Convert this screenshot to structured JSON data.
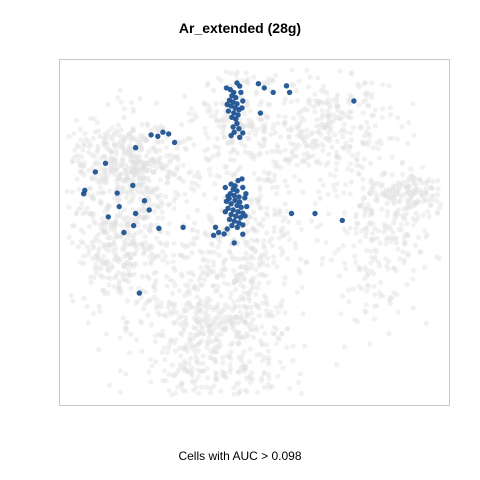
{
  "chart_data": {
    "type": "scatter",
    "title": "Ar_extended (28g)",
    "caption": "Cells with AUC > 0.098",
    "xlabel": "",
    "ylabel": "",
    "grid": false,
    "legend": "none",
    "background_color": "#e0e0e0",
    "highlight_color": "#1d5392",
    "highlighted_cells": [
      [
        0.438,
        0.913
      ],
      [
        0.447,
        0.905
      ],
      [
        0.442,
        0.895
      ],
      [
        0.452,
        0.89
      ],
      [
        0.436,
        0.882
      ],
      [
        0.445,
        0.877
      ],
      [
        0.455,
        0.872
      ],
      [
        0.44,
        0.866
      ],
      [
        0.45,
        0.86
      ],
      [
        0.46,
        0.855
      ],
      [
        0.433,
        0.851
      ],
      [
        0.447,
        0.846
      ],
      [
        0.458,
        0.84
      ],
      [
        0.442,
        0.833
      ],
      [
        0.452,
        0.828
      ],
      [
        0.462,
        0.923
      ],
      [
        0.428,
        0.918
      ],
      [
        0.465,
        0.905
      ],
      [
        0.47,
        0.88
      ],
      [
        0.43,
        0.87
      ],
      [
        0.468,
        0.86
      ],
      [
        0.455,
        0.815
      ],
      [
        0.445,
        0.805
      ],
      [
        0.46,
        0.8
      ],
      [
        0.448,
        0.79
      ],
      [
        0.47,
        0.788
      ],
      [
        0.462,
        0.775
      ],
      [
        0.44,
        0.78
      ],
      [
        0.51,
        0.93
      ],
      [
        0.525,
        0.918
      ],
      [
        0.548,
        0.905
      ],
      [
        0.582,
        0.924
      ],
      [
        0.59,
        0.905
      ],
      [
        0.755,
        0.88
      ],
      [
        0.515,
        0.845
      ],
      [
        0.455,
        0.932
      ],
      [
        0.44,
        0.64
      ],
      [
        0.45,
        0.635
      ],
      [
        0.445,
        0.625
      ],
      [
        0.455,
        0.62
      ],
      [
        0.438,
        0.612
      ],
      [
        0.448,
        0.607
      ],
      [
        0.46,
        0.603
      ],
      [
        0.435,
        0.598
      ],
      [
        0.45,
        0.593
      ],
      [
        0.462,
        0.588
      ],
      [
        0.44,
        0.583
      ],
      [
        0.455,
        0.578
      ],
      [
        0.466,
        0.573
      ],
      [
        0.432,
        0.57
      ],
      [
        0.445,
        0.565
      ],
      [
        0.458,
        0.56
      ],
      [
        0.47,
        0.556
      ],
      [
        0.44,
        0.552
      ],
      [
        0.452,
        0.547
      ],
      [
        0.464,
        0.543
      ],
      [
        0.436,
        0.538
      ],
      [
        0.448,
        0.533
      ],
      [
        0.46,
        0.528
      ],
      [
        0.425,
        0.63
      ],
      [
        0.47,
        0.63
      ],
      [
        0.475,
        0.6
      ],
      [
        0.428,
        0.59
      ],
      [
        0.48,
        0.575
      ],
      [
        0.425,
        0.56
      ],
      [
        0.476,
        0.548
      ],
      [
        0.442,
        0.52
      ],
      [
        0.456,
        0.515
      ],
      [
        0.4,
        0.515
      ],
      [
        0.408,
        0.5
      ],
      [
        0.395,
        0.492
      ],
      [
        0.422,
        0.496
      ],
      [
        0.43,
        0.51
      ],
      [
        0.47,
        0.522
      ],
      [
        0.47,
        0.495
      ],
      [
        0.448,
        0.47
      ],
      [
        0.235,
        0.782
      ],
      [
        0.265,
        0.79
      ],
      [
        0.252,
        0.778
      ],
      [
        0.28,
        0.785
      ],
      [
        0.295,
        0.76
      ],
      [
        0.195,
        0.745
      ],
      [
        0.118,
        0.7
      ],
      [
        0.188,
        0.636
      ],
      [
        0.148,
        0.614
      ],
      [
        0.153,
        0.575
      ],
      [
        0.125,
        0.545
      ],
      [
        0.195,
        0.555
      ],
      [
        0.19,
        0.52
      ],
      [
        0.165,
        0.5
      ],
      [
        0.23,
        0.565
      ],
      [
        0.255,
        0.512
      ],
      [
        0.317,
        0.515
      ],
      [
        0.218,
        0.592
      ],
      [
        0.092,
        0.675
      ],
      [
        0.062,
        0.612
      ],
      [
        0.065,
        0.622
      ],
      [
        0.595,
        0.555
      ],
      [
        0.655,
        0.555
      ],
      [
        0.725,
        0.535
      ],
      [
        0.205,
        0.325
      ],
      [
        0.468,
        0.655
      ],
      [
        0.478,
        0.612
      ],
      [
        0.432,
        0.605
      ],
      [
        0.458,
        0.65
      ]
    ],
    "background_cells_approx": 2500
  }
}
